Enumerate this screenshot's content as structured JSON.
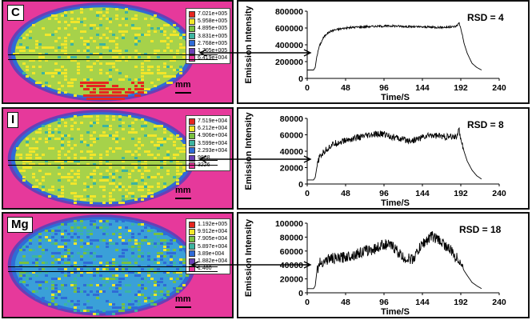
{
  "panels": [
    {
      "element": "C",
      "scale_label": "mm",
      "legend": [
        "7.021e+005",
        "5.958e+005",
        "4.895e+005",
        "3.831e+005",
        "2.768e+005",
        "1.705e+005",
        "6.419e+004"
      ],
      "map_base_color": "#a6d24a",
      "map_colors": [
        "#e6261f",
        "#f2e62a",
        "#78c040",
        "#3db4a0",
        "#2f6bd6",
        "#6a3fb5",
        "#e6399b"
      ],
      "chart_data": {
        "type": "line",
        "title": "RSD = 4",
        "xlabel": "Time/S",
        "ylabel": "Emission Intensity",
        "xlim": [
          0,
          240
        ],
        "ylim": [
          0,
          800000
        ],
        "xticks": [
          0,
          48,
          96,
          144,
          192,
          240
        ],
        "yticks": [
          0,
          200000,
          400000,
          600000,
          800000
        ],
        "series": [
          {
            "x": [
              0,
              8,
              10,
              12,
              15,
              20,
              24,
              30,
              36,
              48,
              60,
              72,
              84,
              96,
              108,
              120,
              132,
              144,
              156,
              168,
              180,
              186,
              190,
              193,
              196,
              200,
              206,
              212,
              218
            ],
            "y": [
              100000,
              100000,
              130000,
              260000,
              380000,
              480000,
              530000,
              565000,
              580000,
              600000,
              610000,
              615000,
              620000,
              622000,
              625000,
              620000,
              615000,
              612000,
              610000,
              608000,
              612000,
              620000,
              660000,
              560000,
              420000,
              300000,
              180000,
              130000,
              100000
            ]
          }
        ]
      }
    },
    {
      "element": "I",
      "scale_label": "mm",
      "legend": [
        "7.519e+004",
        "6.212e+004",
        "4.906e+004",
        "3.599e+004",
        "2.293e+004",
        "9868",
        "3226"
      ],
      "map_base_color": "#a6d24a",
      "map_colors": [
        "#e6261f",
        "#f2e62a",
        "#78c040",
        "#3db4a0",
        "#2f6bd6",
        "#6a3fb5",
        "#e6399b"
      ],
      "chart_data": {
        "type": "line",
        "title": "RSD = 8",
        "xlabel": "Time/S",
        "ylabel": "Emission Intensity",
        "xlim": [
          0,
          240
        ],
        "ylim": [
          0,
          80000
        ],
        "xticks": [
          0,
          48,
          96,
          144,
          192,
          240
        ],
        "yticks": [
          0,
          20000,
          40000,
          60000,
          80000
        ],
        "series": [
          {
            "x": [
              0,
              8,
              10,
              12,
              15,
              20,
              24,
              30,
              36,
              48,
              60,
              72,
              84,
              96,
              108,
              120,
              132,
              144,
              156,
              168,
              180,
              186,
              190,
              193,
              196,
              200,
              206,
              212,
              218
            ],
            "y": [
              5000,
              5000,
              8000,
              20000,
              32000,
              38000,
              42000,
              47000,
              50000,
              53000,
              56000,
              58000,
              60000,
              61000,
              57000,
              54000,
              53000,
              57000,
              60000,
              58000,
              57000,
              58000,
              65000,
              52000,
              40000,
              28000,
              17000,
              10000,
              6000
            ]
          }
        ]
      }
    },
    {
      "element": "Mg",
      "scale_label": "mm",
      "legend": [
        "1.192e+005",
        "9.912e+004",
        "7.905e+004",
        "5.897e+004",
        "3.89e+004",
        "1.882e+004",
        "1.460"
      ],
      "map_base_color": "#3aa0d8",
      "map_colors": [
        "#e6261f",
        "#f2e62a",
        "#78c040",
        "#3db4a0",
        "#2f6bd6",
        "#6a3fb5",
        "#e6399b"
      ],
      "chart_data": {
        "type": "line",
        "title": "RSD = 18",
        "xlabel": "Time/S",
        "ylabel": "Emission Intensity",
        "xlim": [
          0,
          240
        ],
        "ylim": [
          0,
          100000
        ],
        "xticks": [
          0,
          48,
          96,
          144,
          192,
          240
        ],
        "yticks": [
          0,
          20000,
          40000,
          60000,
          80000,
          100000
        ],
        "series": [
          {
            "x": [
              0,
              8,
              10,
              12,
              15,
              20,
              24,
              30,
              36,
              48,
              60,
              72,
              84,
              96,
              108,
              120,
              132,
              144,
              156,
              168,
              180,
              186,
              190,
              193,
              196,
              200,
              206,
              212,
              218
            ],
            "y": [
              6000,
              6000,
              10000,
              30000,
              42000,
              45000,
              47000,
              50000,
              48000,
              52000,
              55000,
              60000,
              63000,
              70000,
              66000,
              50000,
              48000,
              70000,
              82000,
              73000,
              60000,
              50000,
              48000,
              40000,
              32000,
              25000,
              15000,
              10000,
              6000
            ]
          }
        ]
      }
    }
  ]
}
